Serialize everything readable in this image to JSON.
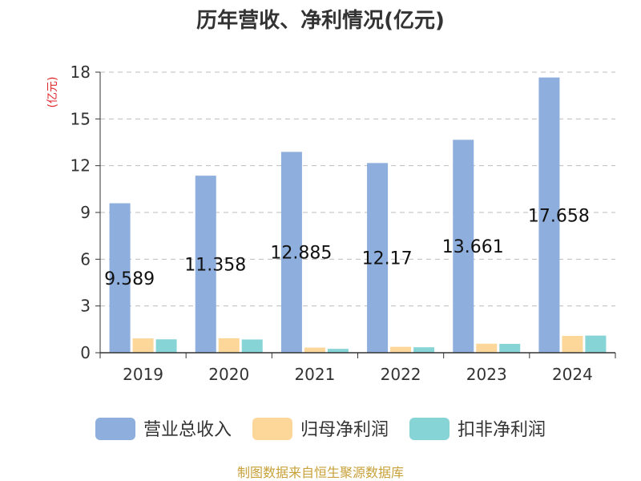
{
  "chart_data": {
    "type": "bar",
    "title": "历年营收、净利情况(亿元)",
    "ylabel": "(亿元)",
    "xlabel": "",
    "categories": [
      "2019",
      "2020",
      "2021",
      "2022",
      "2023",
      "2024"
    ],
    "ylim": [
      0,
      18
    ],
    "yticks": [
      0,
      3,
      6,
      9,
      12,
      15,
      18
    ],
    "grid": true,
    "legend": "bottom",
    "series": [
      {
        "name": "营业总收入",
        "color": "#8eaedd",
        "values": [
          9.589,
          11.358,
          12.885,
          12.17,
          13.661,
          17.658
        ],
        "data_labels": [
          "9.589",
          "11.358",
          "12.885",
          "12.17",
          "13.661",
          "17.658"
        ]
      },
      {
        "name": "归母净利润",
        "color": "#fdd699",
        "values": [
          0.92,
          0.93,
          0.33,
          0.38,
          0.58,
          1.08
        ]
      },
      {
        "name": "扣非净利润",
        "color": "#86d4d6",
        "values": [
          0.86,
          0.85,
          0.25,
          0.35,
          0.57,
          1.1
        ]
      }
    ]
  },
  "footer": {
    "source": "制图数据来自恒生聚源数据库"
  }
}
